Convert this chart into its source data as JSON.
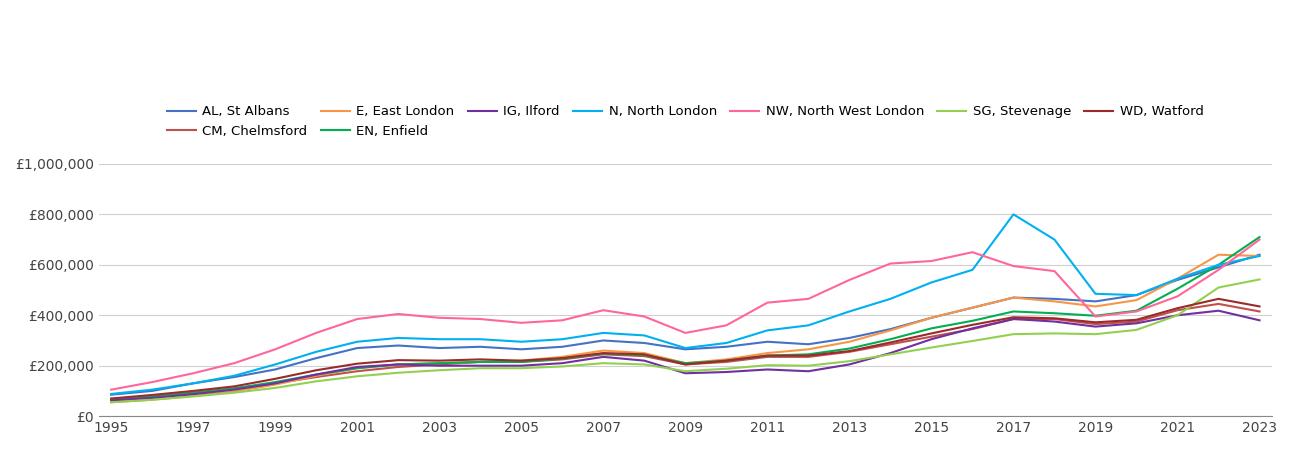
{
  "years": [
    1995,
    1996,
    1997,
    1998,
    1999,
    2000,
    2001,
    2002,
    2003,
    2004,
    2005,
    2006,
    2007,
    2008,
    2009,
    2010,
    2011,
    2012,
    2013,
    2014,
    2015,
    2016,
    2017,
    2018,
    2019,
    2020,
    2021,
    2022,
    2023
  ],
  "series": [
    {
      "label": "AL, St Albans",
      "color": "#4472C4",
      "values": [
        85000,
        100000,
        130000,
        155000,
        185000,
        230000,
        270000,
        280000,
        270000,
        275000,
        265000,
        275000,
        300000,
        290000,
        265000,
        275000,
        295000,
        285000,
        310000,
        345000,
        390000,
        430000,
        470000,
        465000,
        455000,
        480000,
        540000,
        590000,
        640000
      ]
    },
    {
      "label": "CM, Chelmsford",
      "color": "#C0504D",
      "values": [
        65000,
        78000,
        93000,
        110000,
        130000,
        155000,
        178000,
        195000,
        205000,
        215000,
        215000,
        225000,
        245000,
        238000,
        205000,
        215000,
        235000,
        235000,
        255000,
        285000,
        315000,
        345000,
        385000,
        385000,
        365000,
        375000,
        420000,
        445000,
        415000
      ]
    },
    {
      "label": "E, East London",
      "color": "#F79646",
      "values": [
        55000,
        65000,
        80000,
        98000,
        125000,
        160000,
        190000,
        205000,
        210000,
        215000,
        220000,
        235000,
        260000,
        250000,
        210000,
        225000,
        250000,
        265000,
        295000,
        340000,
        390000,
        430000,
        470000,
        455000,
        435000,
        460000,
        545000,
        640000,
        635000
      ]
    },
    {
      "label": "EN, Enfield",
      "color": "#00B050",
      "values": [
        65000,
        76000,
        92000,
        110000,
        135000,
        165000,
        190000,
        205000,
        210000,
        215000,
        215000,
        228000,
        248000,
        242000,
        210000,
        220000,
        240000,
        245000,
        268000,
        305000,
        348000,
        378000,
        415000,
        408000,
        398000,
        418000,
        505000,
        600000,
        710000
      ]
    },
    {
      "label": "IG, Ilford",
      "color": "#7030A0",
      "values": [
        62000,
        72000,
        87000,
        105000,
        130000,
        165000,
        195000,
        205000,
        200000,
        200000,
        200000,
        210000,
        235000,
        220000,
        170000,
        175000,
        185000,
        178000,
        205000,
        250000,
        305000,
        348000,
        385000,
        375000,
        355000,
        368000,
        400000,
        418000,
        380000
      ]
    },
    {
      "label": "N, North London",
      "color": "#00B0F0",
      "values": [
        88000,
        105000,
        130000,
        160000,
        205000,
        255000,
        295000,
        310000,
        305000,
        305000,
        295000,
        305000,
        330000,
        320000,
        270000,
        290000,
        340000,
        360000,
        415000,
        465000,
        530000,
        580000,
        800000,
        700000,
        485000,
        480000,
        545000,
        600000,
        635000
      ]
    },
    {
      "label": "NW, North West London",
      "color": "#FF6699",
      "values": [
        105000,
        135000,
        170000,
        210000,
        265000,
        330000,
        385000,
        405000,
        390000,
        385000,
        370000,
        380000,
        420000,
        395000,
        330000,
        360000,
        450000,
        465000,
        540000,
        605000,
        615000,
        650000,
        595000,
        575000,
        395000,
        415000,
        475000,
        580000,
        700000
      ]
    },
    {
      "label": "SG, Stevenage",
      "color": "#92D050",
      "values": [
        55000,
        65000,
        78000,
        93000,
        112000,
        138000,
        158000,
        172000,
        182000,
        190000,
        190000,
        197000,
        210000,
        205000,
        178000,
        188000,
        202000,
        200000,
        218000,
        245000,
        272000,
        298000,
        325000,
        328000,
        325000,
        342000,
        400000,
        510000,
        542000
      ]
    },
    {
      "label": "WD, Watford",
      "color": "#C0504D",
      "values": [
        70000,
        84000,
        100000,
        118000,
        148000,
        182000,
        208000,
        222000,
        220000,
        225000,
        220000,
        230000,
        250000,
        245000,
        205000,
        220000,
        240000,
        240000,
        258000,
        292000,
        328000,
        362000,
        392000,
        388000,
        372000,
        382000,
        428000,
        465000,
        435000
      ]
    }
  ],
  "legend_order": [
    "AL, St Albans",
    "CM, Chelmsford",
    "E, East London",
    "EN, Enfield",
    "IG, Ilford",
    "N, North London",
    "NW, North West London",
    "SG, Stevenage",
    "WD, Watford"
  ],
  "ylim": [
    0,
    1000000
  ],
  "yticks": [
    0,
    200000,
    400000,
    600000,
    800000,
    1000000
  ],
  "ytick_labels": [
    "£0",
    "£200,000",
    "£400,000",
    "£600,000",
    "£800,000",
    "£1,000,000"
  ],
  "xtick_start": 1995,
  "xtick_end": 2023,
  "xtick_step": 2,
  "background_color": "#ffffff",
  "grid_color": "#d0d0d0",
  "fig_width": 13.05,
  "fig_height": 4.5
}
